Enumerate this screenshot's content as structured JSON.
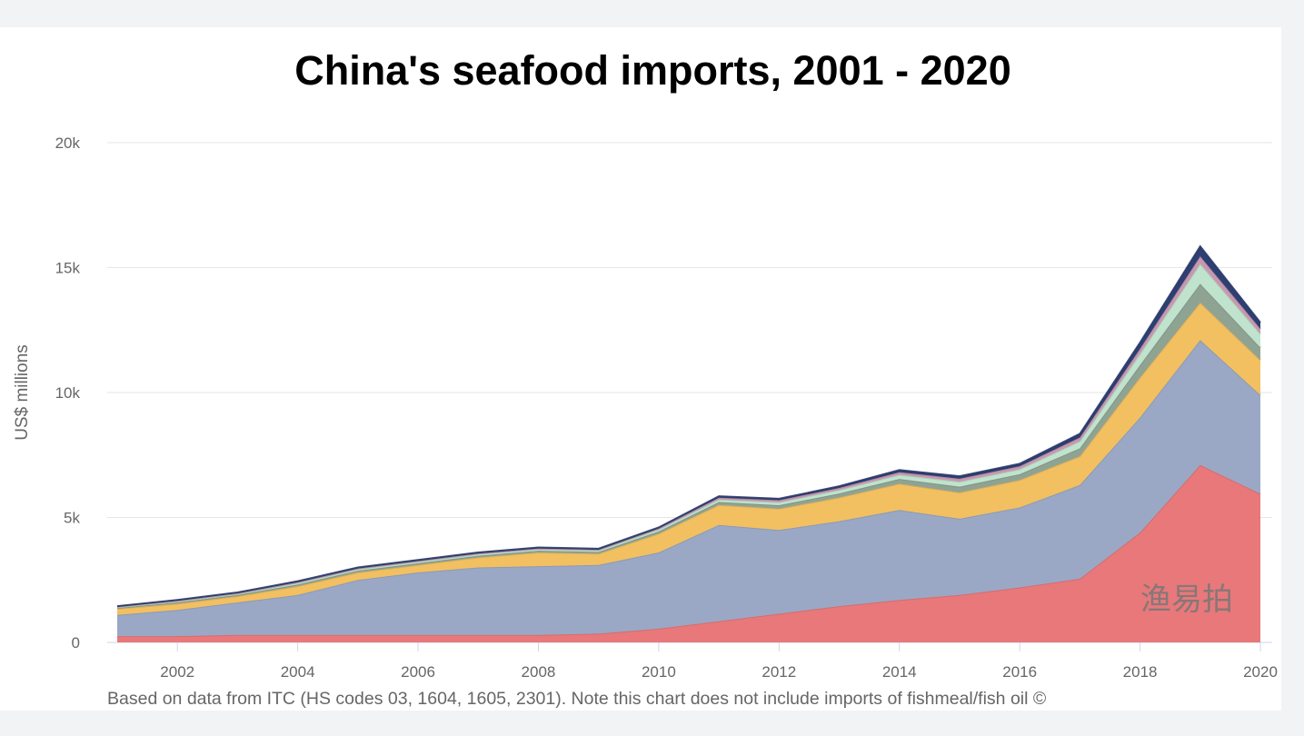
{
  "chart_data": {
    "type": "area",
    "stacked": true,
    "title": "China's seafood imports, 2001 - 2020",
    "ylabel": "US$ millions",
    "xlabel": "",
    "ylim": [
      0,
      20000
    ],
    "xlim": [
      2001,
      2020
    ],
    "yticks": [
      0,
      5000,
      10000,
      15000,
      20000
    ],
    "ytick_labels": [
      "0",
      "5k",
      "10k",
      "15k",
      "20k"
    ],
    "xticks": [
      2002,
      2004,
      2006,
      2008,
      2010,
      2012,
      2014,
      2016,
      2018,
      2020
    ],
    "xtick_labels": [
      "2002",
      "2004",
      "2006",
      "2008",
      "2010",
      "2012",
      "2014",
      "2016",
      "2018",
      "2020"
    ],
    "grid": "horizontal",
    "legend": "none",
    "x": [
      2001,
      2002,
      2003,
      2004,
      2005,
      2006,
      2007,
      2008,
      2009,
      2010,
      2011,
      2012,
      2013,
      2014,
      2015,
      2016,
      2017,
      2018,
      2019,
      2020
    ],
    "series": [
      {
        "color": "#e8787a",
        "values": [
          250,
          250,
          300,
          300,
          300,
          300,
          300,
          300,
          350,
          550,
          850,
          1150,
          1450,
          1700,
          1900,
          2200,
          2550,
          4400,
          7100,
          5950
        ]
      },
      {
        "color": "#9aa8c6",
        "values": [
          850,
          1050,
          1300,
          1600,
          2200,
          2500,
          2700,
          2750,
          2750,
          3050,
          3850,
          3350,
          3400,
          3600,
          3050,
          3200,
          3750,
          4600,
          5000,
          3950
        ]
      },
      {
        "color": "#f2c060",
        "values": [
          250,
          250,
          250,
          350,
          300,
          300,
          400,
          550,
          450,
          750,
          800,
          850,
          950,
          1050,
          1050,
          1100,
          1150,
          1600,
          1500,
          1400
        ]
      },
      {
        "color": "#8fa393",
        "values": [
          30,
          50,
          50,
          70,
          70,
          70,
          70,
          70,
          70,
          90,
          120,
          140,
          160,
          190,
          230,
          230,
          320,
          500,
          750,
          500
        ]
      },
      {
        "color": "#bfe3cc",
        "values": [
          30,
          40,
          40,
          60,
          60,
          60,
          60,
          60,
          60,
          80,
          100,
          120,
          140,
          170,
          200,
          200,
          280,
          450,
          800,
          550
        ]
      },
      {
        "color": "#c898b0",
        "values": [
          20,
          30,
          30,
          30,
          30,
          30,
          30,
          30,
          30,
          40,
          70,
          80,
          80,
          100,
          120,
          120,
          150,
          200,
          300,
          200
        ]
      },
      {
        "color": "#2e3f73",
        "values": [
          20,
          30,
          30,
          40,
          40,
          40,
          40,
          40,
          40,
          40,
          60,
          60,
          70,
          90,
          100,
          100,
          150,
          250,
          400,
          250
        ]
      }
    ],
    "footnote": "Based on data from ITC (HS codes 03, 1604, 1605, 2301). Note this chart does not include imports of fishmeal/fish oil ©"
  },
  "watermark": "渔易拍"
}
